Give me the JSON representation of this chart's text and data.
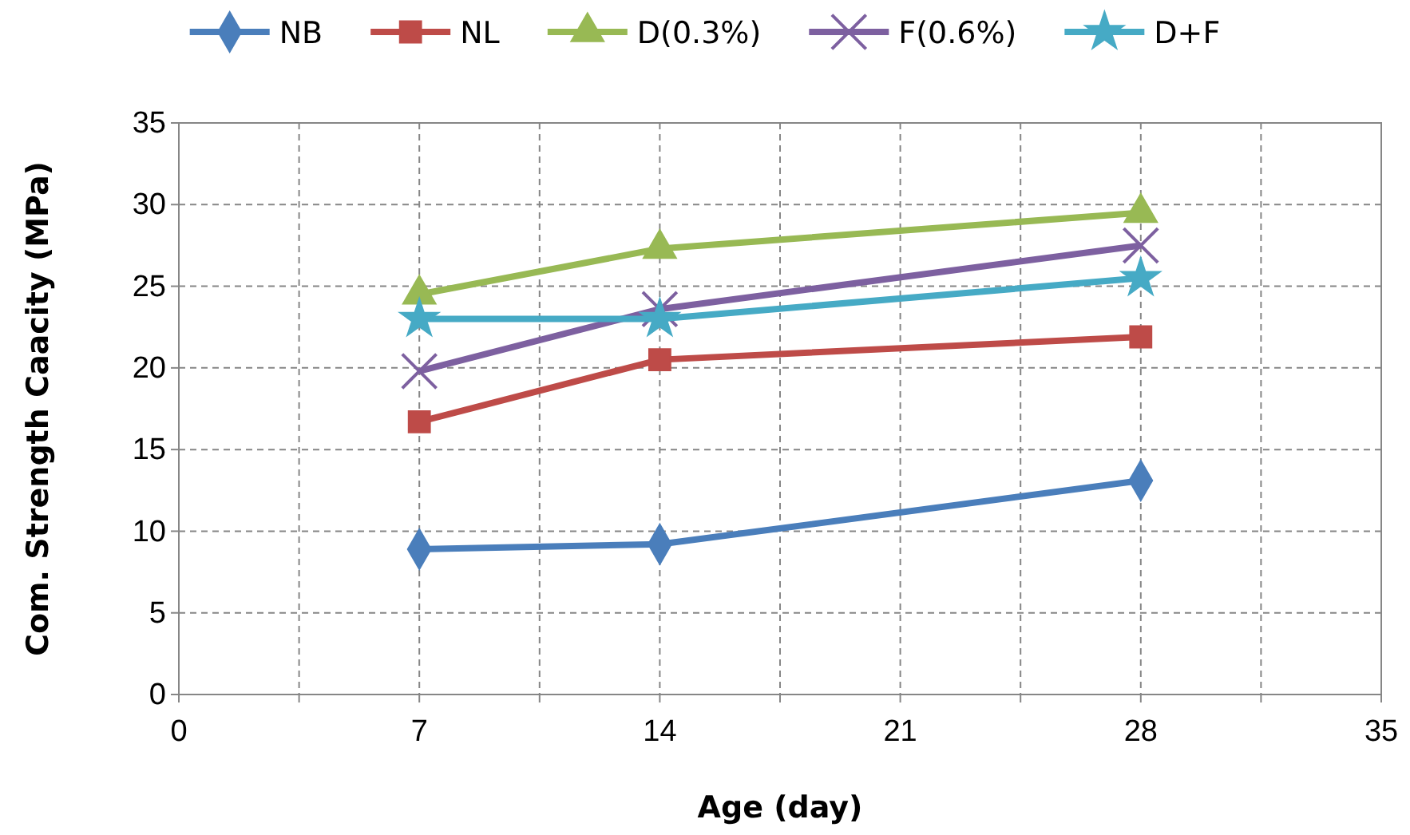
{
  "chart_data": {
    "type": "line",
    "xlabel": "Age (day)",
    "ylabel": "Com. Strength Caacity (MPa)",
    "x": [
      7,
      14,
      28
    ],
    "series": [
      {
        "name": "NB",
        "color": "#4a7ebb",
        "marker": "diamond",
        "values": [
          8.9,
          9.2,
          13.1
        ]
      },
      {
        "name": "NL",
        "color": "#be4b48",
        "marker": "square",
        "values": [
          16.7,
          20.5,
          21.9
        ]
      },
      {
        "name": "D(0.3%)",
        "color": "#98b954",
        "marker": "triangle",
        "values": [
          24.5,
          27.3,
          29.5
        ]
      },
      {
        "name": "F(0.6%)",
        "color": "#7d60a0",
        "marker": "cross",
        "values": [
          19.8,
          23.6,
          27.5
        ]
      },
      {
        "name": "D+F",
        "color": "#46aac5",
        "marker": "star",
        "values": [
          23.0,
          23.0,
          25.5
        ]
      }
    ],
    "xlim": [
      0,
      35
    ],
    "xticks": [
      0,
      {
        "value": 3.5,
        "label": null
      },
      7,
      {
        "value": 10.5,
        "label": null
      },
      14,
      {
        "value": 17.5,
        "label": null
      },
      21,
      {
        "value": 24.5,
        "label": null
      },
      28,
      {
        "value": 31.5,
        "label": null
      },
      35
    ],
    "ylim": [
      0,
      35
    ],
    "yticks": [
      0,
      5,
      10,
      15,
      20,
      25,
      30,
      35
    ],
    "grid": true,
    "legend": "top",
    "line_style": "solid"
  }
}
